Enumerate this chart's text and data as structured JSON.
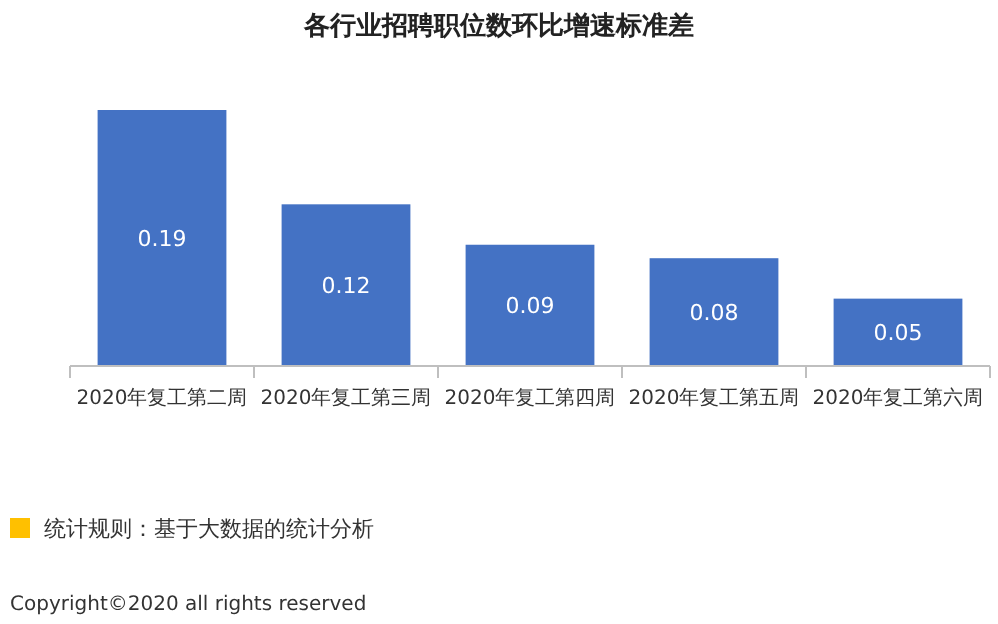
{
  "chart_data": {
    "type": "bar",
    "title": "各行业招聘职位数环比增速标准差",
    "categories": [
      "2020年复工第二周",
      "2020年复工第三周",
      "2020年复工第四周",
      "2020年复工第五周",
      "2020年复工第六周"
    ],
    "values": [
      0.19,
      0.12,
      0.09,
      0.08,
      0.05
    ],
    "color": "#4472c4",
    "data_labels": true,
    "annotations": [
      "统计规则：基于大数据的统计分析",
      "Copyright©2020 all rights reserved"
    ]
  }
}
